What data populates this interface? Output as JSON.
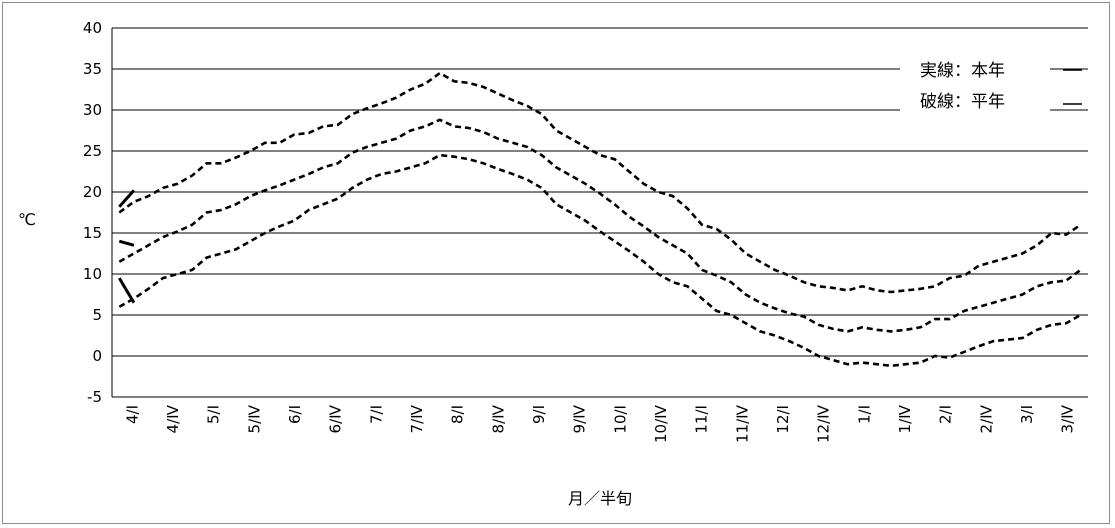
{
  "chart_data": {
    "type": "line",
    "title": "",
    "xlabel": "月／半旬",
    "ylabel": "℃",
    "ylim": [
      -5,
      40
    ],
    "yticks": [
      -5,
      0,
      5,
      10,
      15,
      20,
      25,
      30,
      35,
      40
    ],
    "grid": true,
    "x_tick_labels": [
      "4/Ⅰ",
      "4/Ⅳ",
      "5/Ⅰ",
      "5/Ⅳ",
      "6/Ⅰ",
      "6/Ⅳ",
      "7/Ⅰ",
      "7/Ⅳ",
      "8/Ⅰ",
      "8/Ⅳ",
      "9/Ⅰ",
      "9/Ⅳ",
      "10/Ⅰ",
      "10/Ⅳ",
      "11/Ⅰ",
      "11/Ⅳ",
      "12/Ⅰ",
      "12/Ⅳ",
      "1/Ⅰ",
      "1/Ⅳ",
      "2/Ⅰ",
      "2/Ⅳ",
      "3/Ⅰ",
      "3/Ⅳ"
    ],
    "legend": [
      "実線：本年",
      "破線：平年"
    ],
    "legend_position": "top-right",
    "series": [
      {
        "style": "dashed",
        "values": [
          17.5,
          18.8,
          19.5,
          20.5,
          21.0,
          22.0,
          23.5,
          23.5,
          24.2,
          25.0,
          26.0,
          26.0,
          27.0,
          27.2,
          28.0,
          28.2,
          29.5,
          30.2,
          30.8,
          31.5,
          32.5,
          33.2,
          34.5,
          33.5,
          33.3,
          32.8,
          32.0,
          31.2,
          30.5,
          29.5,
          27.5,
          26.5,
          25.5,
          24.5,
          24.0,
          22.5,
          21.0,
          20.0,
          19.5,
          18.0,
          16.0,
          15.5,
          14.2,
          12.5,
          11.5,
          10.5,
          9.8,
          9.0,
          8.5,
          8.3,
          8.0,
          8.5,
          8.0,
          7.8,
          8.0,
          8.2,
          8.5,
          9.5,
          9.8,
          11.0,
          11.5,
          12.0,
          12.5,
          13.5,
          15.0,
          14.8,
          16.0
        ]
      },
      {
        "style": "dashed",
        "values": [
          11.5,
          12.5,
          13.5,
          14.5,
          15.2,
          16.0,
          17.5,
          17.8,
          18.5,
          19.5,
          20.2,
          20.8,
          21.5,
          22.2,
          23.0,
          23.5,
          24.8,
          25.5,
          26.0,
          26.5,
          27.5,
          28.0,
          28.8,
          28.0,
          27.8,
          27.3,
          26.5,
          26.0,
          25.5,
          24.5,
          23.0,
          22.0,
          21.0,
          19.8,
          18.5,
          17.0,
          15.8,
          14.5,
          13.5,
          12.5,
          10.5,
          9.8,
          9.0,
          7.5,
          6.5,
          5.8,
          5.2,
          4.8,
          3.8,
          3.3,
          3.0,
          3.5,
          3.2,
          3.0,
          3.2,
          3.5,
          4.5,
          4.5,
          5.5,
          6.0,
          6.5,
          7.0,
          7.5,
          8.5,
          9.0,
          9.2,
          10.5
        ]
      },
      {
        "style": "dashed",
        "values": [
          6.0,
          7.0,
          8.2,
          9.5,
          10.0,
          10.5,
          12.0,
          12.5,
          13.0,
          14.0,
          15.0,
          15.8,
          16.5,
          17.8,
          18.5,
          19.2,
          20.5,
          21.5,
          22.2,
          22.5,
          23.0,
          23.5,
          24.5,
          24.3,
          24.0,
          23.5,
          22.8,
          22.2,
          21.5,
          20.5,
          18.5,
          17.5,
          16.5,
          15.2,
          14.0,
          12.8,
          11.5,
          10.0,
          9.0,
          8.5,
          7.0,
          5.5,
          5.0,
          4.0,
          3.0,
          2.5,
          1.8,
          1.0,
          0.0,
          -0.5,
          -1.0,
          -0.8,
          -1.0,
          -1.2,
          -1.0,
          -0.8,
          0.0,
          -0.2,
          0.5,
          1.2,
          1.8,
          2.0,
          2.2,
          3.2,
          3.8,
          4.0,
          5.0
        ]
      },
      {
        "style": "solid",
        "values": [
          18.2,
          20.2
        ]
      },
      {
        "style": "solid",
        "values": [
          14.0,
          13.5
        ]
      },
      {
        "style": "solid",
        "values": [
          9.5,
          6.5
        ]
      }
    ],
    "colors": {
      "line": "#000000",
      "grid": "#000000",
      "frame": "#8c8c8c"
    }
  }
}
